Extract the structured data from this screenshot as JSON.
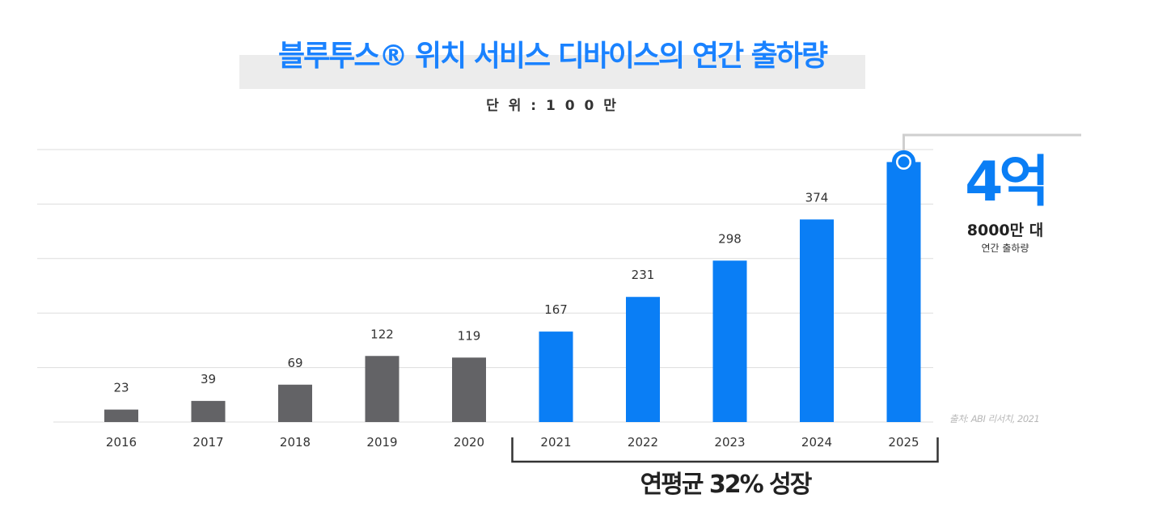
{
  "chart_data": {
    "type": "bar",
    "title": "블루투스® 위치 서비스 디바이스의 연간 출하량",
    "unit_label": "단 위 : 1 0 0 만",
    "categories": [
      "2016",
      "2017",
      "2018",
      "2019",
      "2020",
      "2021",
      "2022",
      "2023",
      "2024",
      "2025"
    ],
    "values": [
      23,
      39,
      69,
      122,
      119,
      167,
      231,
      298,
      374,
      480
    ],
    "value_labels": [
      "23",
      "39",
      "69",
      "122",
      "119",
      "167",
      "231",
      "298",
      "374",
      ""
    ],
    "ylim": [
      0,
      500
    ],
    "grid": true,
    "colors": {
      "historical": "#636366",
      "forecast": "#0a7ef5",
      "title": "#1a82ff",
      "grid": "#dddddd"
    },
    "highlight": {
      "value": "4억",
      "sub": "8000만 대",
      "caption": "연간 출하량"
    },
    "growth_label": "연평균 32% 성장",
    "growth_range": [
      "2021",
      "2025"
    ],
    "source": "출처: ABI 리서치, 2021"
  }
}
